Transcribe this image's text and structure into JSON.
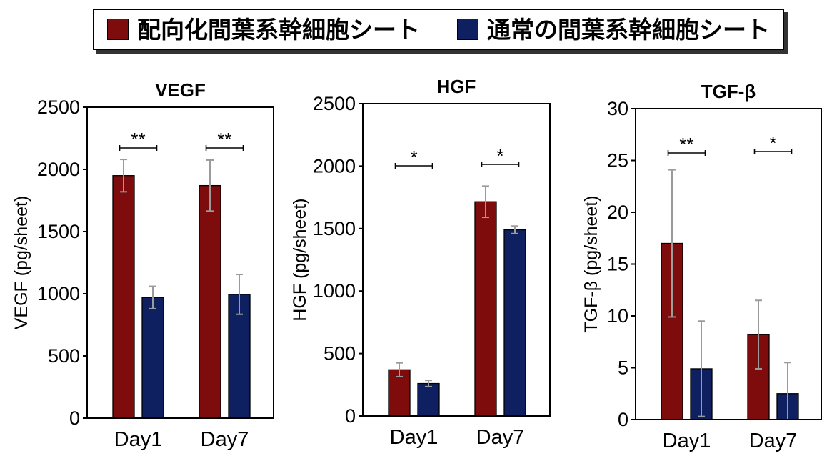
{
  "legend": {
    "position": "top",
    "items": [
      {
        "label": "配向化間葉系幹細胞シート",
        "color": "#7e0c0c"
      },
      {
        "label": "通常の間葉系幹細胞シート",
        "color": "#0f2060"
      }
    ]
  },
  "chart_data": [
    {
      "type": "bar",
      "title": "VEGF",
      "ylabel": "VEGF (pg/sheet)",
      "categories": [
        "Day1",
        "Day7"
      ],
      "ylim": [
        0,
        2500
      ],
      "yticks": [
        0,
        500,
        1000,
        1500,
        2000,
        2500
      ],
      "grid": false,
      "series": [
        {
          "name": "配向化間葉系幹細胞シート",
          "color": "#7e0c0c",
          "values": [
            1950,
            1870
          ],
          "errors": [
            130,
            205
          ]
        },
        {
          "name": "通常の間葉系幹細胞シート",
          "color": "#0f2060",
          "values": [
            970,
            995
          ],
          "errors": [
            90,
            160
          ]
        }
      ],
      "annotations": [
        {
          "category": "Day1",
          "text": "**"
        },
        {
          "category": "Day7",
          "text": "**"
        }
      ]
    },
    {
      "type": "bar",
      "title": "HGF",
      "ylabel": "HGF (pg/sheet)",
      "categories": [
        "Day1",
        "Day7"
      ],
      "ylim": [
        0,
        2500
      ],
      "yticks": [
        0,
        500,
        1000,
        1500,
        2000,
        2500
      ],
      "grid": false,
      "series": [
        {
          "name": "配向化間葉系幹細胞シート",
          "color": "#7e0c0c",
          "values": [
            370,
            1715
          ],
          "errors": [
            55,
            125
          ]
        },
        {
          "name": "通常の間葉系幹細胞シート",
          "color": "#0f2060",
          "values": [
            260,
            1490
          ],
          "errors": [
            25,
            30
          ]
        }
      ],
      "annotations": [
        {
          "category": "Day1",
          "text": "*"
        },
        {
          "category": "Day7",
          "text": "*"
        }
      ]
    },
    {
      "type": "bar",
      "title": "TGF-β",
      "ylabel": "TGF-β (pg/sheet)",
      "categories": [
        "Day1",
        "Day7"
      ],
      "ylim": [
        0,
        30
      ],
      "yticks": [
        0,
        5,
        10,
        15,
        20,
        25,
        30
      ],
      "grid": false,
      "series": [
        {
          "name": "配向化間葉系幹細胞シート",
          "color": "#7e0c0c",
          "values": [
            17.0,
            8.2
          ],
          "errors": [
            7.1,
            3.3
          ]
        },
        {
          "name": "通常の間葉系幹細胞シート",
          "color": "#0f2060",
          "values": [
            4.9,
            2.5
          ],
          "errors": [
            4.6,
            3.0
          ]
        }
      ],
      "annotations": [
        {
          "category": "Day1",
          "text": "**"
        },
        {
          "category": "Day7",
          "text": "*"
        }
      ]
    }
  ]
}
